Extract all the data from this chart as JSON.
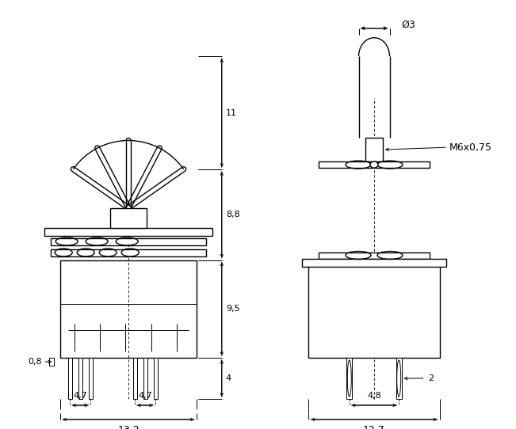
{
  "bg_color": "#ffffff",
  "line_color": "#000000",
  "fig_width": 6.51,
  "fig_height": 5.42,
  "dpi": 100,
  "lw": 1.0,
  "lw_thin": 0.7,
  "lw_dim": 0.7
}
